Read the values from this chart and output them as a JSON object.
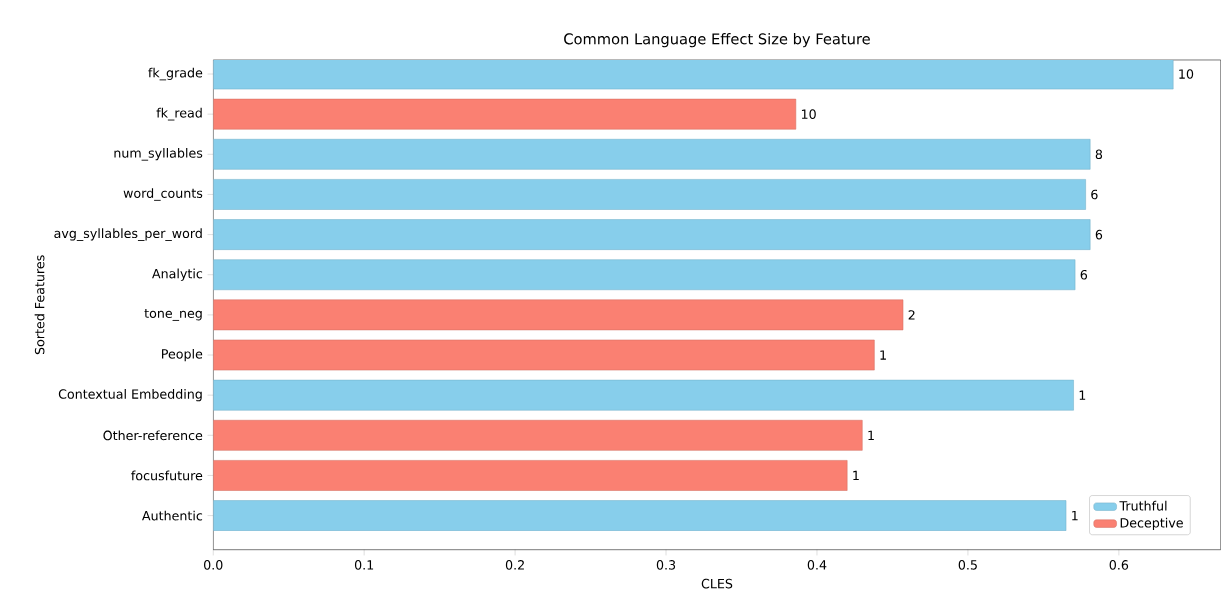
{
  "chart_data": {
    "type": "bar",
    "orientation": "horizontal",
    "title": "Common Language Effect Size by Feature",
    "xlabel": "CLES",
    "ylabel": "Sorted Features",
    "categories": [
      "fk_grade",
      "fk_read",
      "num_syllables",
      "word_counts",
      "avg_syllables_per_word",
      "Analytic",
      "tone_neg",
      "People",
      "Contextual Embedding",
      "Other-reference",
      "focusfuture",
      "Authentic"
    ],
    "series": [
      {
        "name": "Truthful",
        "color": "#87ceeb",
        "values": [
          0.636,
          null,
          0.581,
          0.578,
          0.581,
          0.571,
          null,
          null,
          0.57,
          null,
          null,
          0.565
        ]
      },
      {
        "name": "Deceptive",
        "color": "#fa8072",
        "values": [
          null,
          0.386,
          null,
          null,
          null,
          null,
          0.457,
          0.438,
          null,
          0.43,
          0.42,
          null
        ]
      }
    ],
    "annotations": [
      {
        "text": "10",
        "x": 0.636,
        "y": "fk_grade"
      },
      {
        "text": "10",
        "x": 0.386,
        "y": "fk_read"
      },
      {
        "text": "8",
        "x": 0.581,
        "y": "num_syllables"
      },
      {
        "text": "6",
        "x": 0.578,
        "y": "word_counts"
      },
      {
        "text": "6",
        "x": 0.581,
        "y": "avg_syllables_per_word"
      },
      {
        "text": "6",
        "x": 0.571,
        "y": "Analytic"
      },
      {
        "text": "2",
        "x": 0.457,
        "y": "tone_neg"
      },
      {
        "text": "1",
        "x": 0.438,
        "y": "People"
      },
      {
        "text": "1",
        "x": 0.57,
        "y": "Contextual Embedding"
      },
      {
        "text": "1",
        "x": 0.43,
        "y": "Other-reference"
      },
      {
        "text": "1",
        "x": 0.42,
        "y": "focusfuture"
      },
      {
        "text": "1",
        "x": 0.565,
        "y": "Authentic"
      }
    ],
    "xlim": [
      0,
      0.6675
    ],
    "xticks": [
      {
        "value": 0,
        "label": "0.0"
      },
      0.1,
      0.2,
      0.3,
      0.4,
      0.5,
      0.6
    ],
    "legend": "bottom right"
  }
}
